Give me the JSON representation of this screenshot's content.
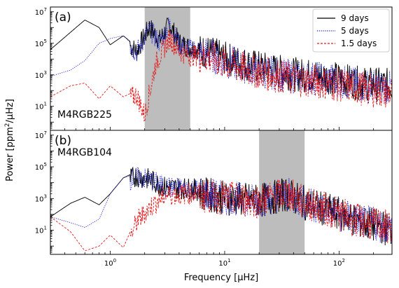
{
  "chart_data": {
    "type": "line",
    "xlabel": "Frequency [µHz]",
    "ylabel": "Power [ppm²/µHz]",
    "x_scale": "log",
    "y_scale": "log",
    "xlim": [
      0.3,
      290
    ],
    "ylim": [
      0.3,
      20000000
    ],
    "x_ticks": [
      {
        "value": 1,
        "label": "10",
        "sup": "0"
      },
      {
        "value": 10,
        "label": "10",
        "sup": "1"
      },
      {
        "value": 100,
        "label": "10",
        "sup": "2"
      }
    ],
    "y_ticks": [
      {
        "value": 10,
        "label": "10",
        "sup": "1"
      },
      {
        "value": 1000,
        "label": "10",
        "sup": "3"
      },
      {
        "value": 100000,
        "label": "10",
        "sup": "5"
      },
      {
        "value": 10000000,
        "label": "10",
        "sup": "7"
      }
    ],
    "legend": {
      "position": "upper-right",
      "entries": [
        {
          "name": "9 days",
          "color": "#000000",
          "style": "solid"
        },
        {
          "name": "5 days",
          "color": "#1f1fd6",
          "style": "dotted"
        },
        {
          "name": "1.5 days",
          "color": "#e31a1c",
          "style": "dashed"
        }
      ]
    },
    "panels": [
      {
        "tag": "(a)",
        "star": "M4RGB225",
        "shaded_band": [
          2.0,
          5.0
        ],
        "series": [
          {
            "name": "9 days",
            "x": [
              0.3,
              0.45,
              0.6,
              0.8,
              1.0,
              1.3,
              1.7,
              2.2,
              2.7,
              3.3,
              4.0,
              5.0,
              7,
              10,
              20,
              40,
              80,
              150,
              290
            ],
            "y": [
              40000,
              500000,
              3000000,
              1000000,
              80000,
              300000,
              60000,
              2000000,
              300000,
              3000000,
              200000,
              100000,
              80000,
              30000,
              8000,
              3000,
              2000,
              800,
              600
            ]
          },
          {
            "name": "5 days",
            "x": [
              0.3,
              0.45,
              0.6,
              0.8,
              1.0,
              1.3,
              1.7,
              2.2,
              2.7,
              3.3,
              4.0,
              5.0,
              7,
              10,
              20,
              40,
              80,
              150,
              290
            ],
            "y": [
              800,
              2000,
              8000,
              100000,
              200000,
              300000,
              50000,
              1500000,
              200000,
              3000000,
              150000,
              80000,
              60000,
              20000,
              5000,
              2000,
              1500,
              600,
              400
            ]
          },
          {
            "name": "1.5 days",
            "x": [
              0.3,
              0.45,
              0.6,
              0.8,
              1.0,
              1.3,
              1.7,
              2.0,
              2.5,
              3.3,
              4.0,
              5.0,
              7,
              10,
              20,
              40,
              80,
              150,
              290
            ],
            "y": [
              40,
              200,
              300,
              30,
              200,
              40,
              100,
              5,
              10000,
              400000,
              60000,
              30000,
              40000,
              15000,
              4000,
              1500,
              800,
              400,
              200
            ]
          }
        ]
      },
      {
        "tag": "(b)",
        "star": "M4RGB104",
        "shaded_band": [
          20,
          50
        ],
        "series": [
          {
            "name": "9 days",
            "x": [
              0.3,
              0.45,
              0.6,
              0.8,
              1.0,
              1.3,
              1.7,
              2.2,
              3,
              5,
              7,
              10,
              20,
              35,
              50,
              80,
              150,
              290
            ],
            "y": [
              70,
              500,
              1200,
              400,
              2000,
              20000,
              50000,
              30000,
              10000,
              8000,
              5000,
              3000,
              2000,
              5000,
              1500,
              500,
              100,
              30
            ]
          },
          {
            "name": "5 days",
            "x": [
              0.3,
              0.45,
              0.6,
              0.8,
              1.0,
              1.3,
              1.7,
              2.2,
              3,
              5,
              7,
              10,
              20,
              35,
              50,
              80,
              150,
              290
            ],
            "y": [
              70,
              30,
              15,
              50,
              2000,
              20000,
              40000,
              30000,
              10000,
              8000,
              5000,
              3000,
              2000,
              5000,
              1500,
              500,
              100,
              40
            ]
          },
          {
            "name": "1.5 days",
            "x": [
              0.3,
              0.45,
              0.6,
              0.8,
              1.0,
              1.3,
              1.7,
              2.2,
              3,
              5,
              7,
              10,
              20,
              35,
              50,
              80,
              150,
              290
            ],
            "y": [
              70,
              8,
              0.5,
              1,
              5,
              0.8,
              60,
              500,
              3000,
              4000,
              4000,
              3000,
              2000,
              6000,
              1500,
              500,
              100,
              40
            ]
          }
        ]
      }
    ]
  }
}
